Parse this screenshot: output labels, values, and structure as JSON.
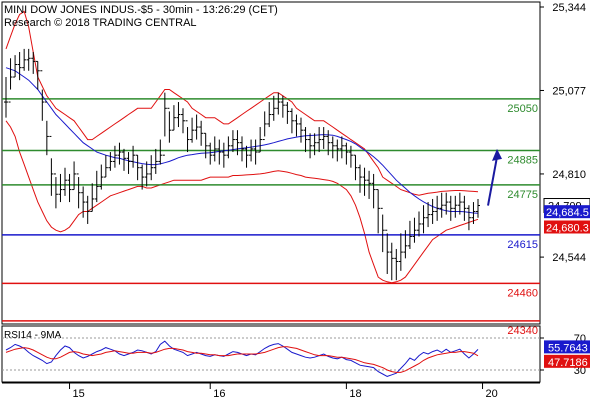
{
  "header": {
    "title": "MINI DOW JONES INDUS.-$5 - 30min - 13:26:29 (CET)",
    "subtitle": "Research © 2018 TRADING CENTRAL"
  },
  "chart_data": [
    {
      "type": "candlestick",
      "ylim": [
        24330,
        25360
      ],
      "y_ticks": [
        "25,344",
        "25,077",
        "24,810",
        "24,544"
      ],
      "y_tick_values": [
        25344,
        25077,
        24810,
        24544
      ],
      "x_ticks": [
        "15",
        "16",
        "18",
        "20"
      ],
      "x_tick_index": [
        14,
        45,
        75,
        105
      ],
      "current_price": {
        "label": "24,709",
        "value": 24709,
        "color": "#000000"
      },
      "indicator_labels": [
        {
          "label": "24,684.5",
          "value": 24684.5,
          "color": "#1a1acc"
        },
        {
          "label": "24,680.3",
          "value": 24680.3,
          "color": "#e01010"
        }
      ],
      "levels": [
        {
          "label": "25050",
          "value": 25050,
          "color": "#2e8b2e",
          "label_color": "#2e8b2e"
        },
        {
          "label": "24885",
          "value": 24885,
          "color": "#2e8b2e",
          "label_color": "#2e8b2e"
        },
        {
          "label": "24775",
          "value": 24775,
          "color": "#2e8b2e",
          "label_color": "#2e8b2e"
        },
        {
          "label": "24615",
          "value": 24615,
          "color": "#1a1acc",
          "label_color": "#1a1acc"
        },
        {
          "label": "24460",
          "value": 24460,
          "color": "#e01010",
          "label_color": "#e01010"
        },
        {
          "label": "24340",
          "value": 24340,
          "color": "#e01010",
          "label_color": "#e01010"
        }
      ],
      "close": [
        25040,
        25120,
        25160,
        25150,
        25175,
        25180,
        25170,
        25140,
        25040,
        24930,
        24810,
        24745,
        24760,
        24790,
        24760,
        24810,
        24750,
        24720,
        24690,
        24730,
        24770,
        24800,
        24830,
        24850,
        24870,
        24880,
        24860,
        24850,
        24870,
        24830,
        24800,
        24810,
        24830,
        24850,
        24870,
        25020,
        24950,
        24990,
        25000,
        24980,
        24920,
        24950,
        24960,
        24940,
        24900,
        24870,
        24890,
        24880,
        24870,
        24900,
        24920,
        24910,
        24890,
        24870,
        24890,
        24880,
        24920,
        24970,
        25000,
        25020,
        25040,
        25030,
        25010,
        24980,
        24970,
        24950,
        24920,
        24900,
        24910,
        24920,
        24930,
        24910,
        24900,
        24890,
        24900,
        24880,
        24870,
        24830,
        24800,
        24790,
        24780,
        24760,
        24700,
        24630,
        24560,
        24540,
        24530,
        24560,
        24580,
        24610,
        24630,
        24650,
        24670,
        24680,
        24690,
        24700,
        24710,
        24720,
        24700,
        24710,
        24720,
        24700,
        24670,
        24690,
        24709
      ],
      "high": [
        25120,
        25180,
        25190,
        25200,
        25210,
        25210,
        25200,
        25170,
        25080,
        24980,
        24860,
        24800,
        24810,
        24830,
        24810,
        24850,
        24800,
        24770,
        24740,
        24780,
        24820,
        24840,
        24870,
        24880,
        24900,
        24910,
        24890,
        24880,
        24900,
        24870,
        24840,
        24850,
        24870,
        24890,
        24920,
        25070,
        25010,
        25030,
        25040,
        25020,
        24960,
        24990,
        25000,
        24980,
        24940,
        24910,
        24930,
        24920,
        24910,
        24930,
        24950,
        24950,
        24930,
        24900,
        24920,
        24920,
        24960,
        25010,
        25040,
        25060,
        25070,
        25060,
        25040,
        25020,
        25000,
        24990,
        24960,
        24940,
        24940,
        24960,
        24960,
        24950,
        24930,
        24920,
        24930,
        24910,
        24900,
        24870,
        24840,
        24830,
        24820,
        24810,
        24760,
        24680,
        24620,
        24590,
        24570,
        24620,
        24630,
        24660,
        24670,
        24690,
        24710,
        24720,
        24730,
        24740,
        24750,
        24750,
        24740,
        24740,
        24750,
        24740,
        24710,
        24720,
        24730
      ],
      "low": [
        24990,
        25080,
        25120,
        25110,
        25140,
        25140,
        25130,
        25080,
        24980,
        24870,
        24740,
        24700,
        24720,
        24740,
        24720,
        24760,
        24700,
        24670,
        24650,
        24690,
        24720,
        24760,
        24800,
        24820,
        24830,
        24840,
        24820,
        24810,
        24830,
        24790,
        24760,
        24770,
        24790,
        24810,
        24840,
        24930,
        24910,
        24950,
        24960,
        24940,
        24880,
        24910,
        24920,
        24900,
        24860,
        24840,
        24850,
        24840,
        24830,
        24860,
        24880,
        24870,
        24850,
        24830,
        24850,
        24840,
        24880,
        24930,
        24960,
        24980,
        25000,
        24990,
        24970,
        24940,
        24930,
        24910,
        24880,
        24860,
        24870,
        24880,
        24890,
        24870,
        24860,
        24850,
        24860,
        24840,
        24830,
        24790,
        24750,
        24740,
        24730,
        24700,
        24620,
        24560,
        24490,
        24470,
        24470,
        24500,
        24540,
        24570,
        24590,
        24610,
        24620,
        24640,
        24650,
        24660,
        24670,
        24680,
        24660,
        24670,
        24680,
        24660,
        24630,
        24650,
        24670
      ],
      "ma": [
        25150,
        25145,
        25140,
        25130,
        25120,
        25110,
        25095,
        25080,
        25060,
        25040,
        25020,
        25000,
        24985,
        24970,
        24955,
        24940,
        24925,
        24910,
        24900,
        24890,
        24880,
        24875,
        24870,
        24866,
        24862,
        24860,
        24856,
        24852,
        24849,
        24846,
        24843,
        24841,
        24840,
        24840,
        24842,
        24846,
        24850,
        24856,
        24862,
        24866,
        24870,
        24872,
        24874,
        24876,
        24877,
        24878,
        24880,
        24882,
        24884,
        24886,
        24888,
        24890,
        24892,
        24894,
        24896,
        24898,
        24900,
        24903,
        24906,
        24910,
        24914,
        24918,
        24922,
        24925,
        24928,
        24930,
        24932,
        24933,
        24934,
        24935,
        24936,
        24935,
        24934,
        24930,
        24925,
        24920,
        24914,
        24906,
        24896,
        24886,
        24876,
        24865,
        24852,
        24838,
        24822,
        24806,
        24790,
        24777,
        24764,
        24751,
        24740,
        24730,
        24721,
        24713,
        24706,
        24700,
        24696,
        24692,
        24690,
        24690,
        24690,
        24689,
        24687,
        24685,
        24684.5
      ],
      "bb_upper": [
        25210,
        25250,
        25290,
        25320,
        25330,
        25280,
        25200,
        25120,
        25090,
        25060,
        25040,
        25020,
        25010,
        25000,
        24990,
        24980,
        24960,
        24940,
        24920,
        24920,
        24930,
        24940,
        24950,
        24960,
        24970,
        24980,
        24990,
        25000,
        25010,
        25020,
        25020,
        25020,
        25020,
        25040,
        25060,
        25080,
        25080,
        25070,
        25060,
        25050,
        25040,
        25020,
        25010,
        25000,
        24990,
        24990,
        24990,
        24980,
        24970,
        24970,
        24980,
        24990,
        25000,
        25010,
        25020,
        25030,
        25040,
        25050,
        25060,
        25070,
        25070,
        25060,
        25050,
        25040,
        25020,
        25010,
        25000,
        24990,
        24980,
        24980,
        24980,
        24970,
        24960,
        24950,
        24940,
        24930,
        24920,
        24910,
        24900,
        24890,
        24870,
        24850,
        24830,
        24800,
        24790,
        24780,
        24770,
        24760,
        24755,
        24750,
        24745,
        24742,
        24745,
        24748,
        24750,
        24752,
        24754,
        24755,
        24756,
        24757,
        24757,
        24756,
        24755,
        24754,
        24753
      ],
      "bb_lower": [
        24980,
        24960,
        24930,
        24880,
        24840,
        24800,
        24760,
        24720,
        24690,
        24660,
        24640,
        24630,
        24625,
        24630,
        24640,
        24660,
        24680,
        24690,
        24690,
        24700,
        24710,
        24720,
        24730,
        24740,
        24745,
        24750,
        24755,
        24760,
        24765,
        24770,
        24770,
        24765,
        24765,
        24770,
        24775,
        24780,
        24785,
        24790,
        24790,
        24790,
        24790,
        24790,
        24790,
        24790,
        24795,
        24800,
        24800,
        24800,
        24800,
        24800,
        24805,
        24805,
        24806,
        24807,
        24808,
        24809,
        24810,
        24812,
        24815,
        24818,
        24820,
        24818,
        24816,
        24812,
        24808,
        24805,
        24800,
        24798,
        24796,
        24794,
        24792,
        24790,
        24786,
        24780,
        24770,
        24760,
        24740,
        24710,
        24670,
        24620,
        24560,
        24520,
        24480,
        24470,
        24465,
        24462,
        24465,
        24470,
        24480,
        24500,
        24520,
        24540,
        24560,
        24580,
        24600,
        24610,
        24620,
        24630,
        24635,
        24640,
        24645,
        24650,
        24655,
        24660,
        24665
      ],
      "projection_arrow": {
        "from_value": 24709,
        "to_value": 24890,
        "color": "#1a1aa0"
      }
    },
    {
      "type": "line",
      "title": "RSI14 - 9MA",
      "ylim": [
        15,
        85
      ],
      "y_ticks": [
        "70",
        "30"
      ],
      "y_tick_values": [
        70,
        30
      ],
      "current_labels": [
        {
          "label": "55.7643",
          "value": 55.7643,
          "color": "#1a1acc"
        },
        {
          "label": "47.7186",
          "value": 47.7186,
          "color": "#e01010"
        }
      ],
      "series": [
        {
          "color": "#1a1acc",
          "values": [
            55,
            58,
            62,
            60,
            57,
            52,
            48,
            45,
            42,
            38,
            40,
            48,
            55,
            60,
            58,
            52,
            48,
            45,
            47,
            50,
            53,
            55,
            58,
            56,
            54,
            50,
            48,
            50,
            52,
            55,
            54,
            52,
            50,
            53,
            62,
            66,
            60,
            56,
            54,
            52,
            48,
            50,
            52,
            50,
            48,
            47,
            49,
            48,
            47,
            50,
            53,
            52,
            50,
            48,
            50,
            49,
            53,
            57,
            60,
            62,
            63,
            60,
            56,
            52,
            50,
            48,
            46,
            45,
            46,
            48,
            50,
            47,
            45,
            44,
            46,
            43,
            42,
            39,
            36,
            35,
            34,
            33,
            28,
            25,
            22,
            24,
            26,
            32,
            38,
            45,
            42,
            48,
            52,
            50,
            53,
            55,
            52,
            56,
            52,
            54,
            56,
            50,
            45,
            50,
            55.7643
          ]
        },
        {
          "color": "#e01010",
          "values": [
            52,
            54,
            56,
            57,
            58,
            57,
            55,
            52,
            49,
            46,
            44,
            44,
            46,
            49,
            52,
            53,
            52,
            50,
            49,
            48,
            49,
            50,
            52,
            53,
            54,
            53,
            52,
            51,
            51,
            52,
            52,
            52,
            51,
            52,
            54,
            56,
            57,
            57,
            56,
            55,
            53,
            52,
            51,
            51,
            50,
            49,
            49,
            48,
            48,
            48,
            49,
            50,
            50,
            50,
            50,
            50,
            51,
            52,
            54,
            56,
            58,
            59,
            59,
            58,
            57,
            55,
            53,
            51,
            49,
            48,
            48,
            48,
            47,
            46,
            46,
            45,
            44,
            43,
            41,
            39,
            38,
            37,
            35,
            33,
            30,
            28,
            27,
            27,
            29,
            32,
            35,
            38,
            42,
            45,
            47,
            49,
            50,
            51,
            52,
            52,
            53,
            53,
            52,
            51,
            47.7186
          ]
        }
      ]
    }
  ]
}
